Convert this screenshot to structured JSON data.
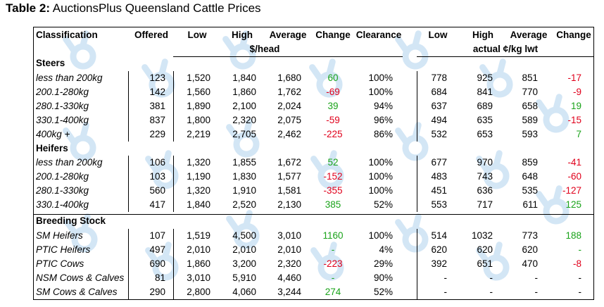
{
  "title": {
    "bold": "Table 2:",
    "text": " AuctionsPlus Queensland Cattle Prices"
  },
  "headers": {
    "classification": "Classification",
    "offered": "Offered",
    "low": "Low",
    "high": "High",
    "average": "Average",
    "change": "Change",
    "clearance": "Clearance",
    "low2": "Low",
    "high2": "High",
    "average2": "Average",
    "change2": "Change",
    "unit_head": "$/head",
    "unit_kg": "actual ¢/kg lwt"
  },
  "colors": {
    "positive": "#1aa31a",
    "negative": "#e0001b"
  },
  "rows": [
    {
      "section": "Steers"
    },
    {
      "label": "less than 200kg",
      "offered": "123",
      "low": "1,520",
      "high": "1,840",
      "avg": "1,680",
      "change": "60",
      "clearance": "100%",
      "low2": "778",
      "high2": "925",
      "avg2": "851",
      "change2": "-17"
    },
    {
      "label": "200.1-280kg",
      "offered": "142",
      "low": "1,560",
      "high": "1,860",
      "avg": "1,762",
      "change": "-69",
      "clearance": "100%",
      "low2": "684",
      "high2": "841",
      "avg2": "770",
      "change2": "-9"
    },
    {
      "label": "280.1-330kg",
      "offered": "381",
      "low": "1,890",
      "high": "2,100",
      "avg": "2,024",
      "change": "39",
      "clearance": "94%",
      "low2": "637",
      "high2": "689",
      "avg2": "658",
      "change2": "19"
    },
    {
      "label": "330.1-400kg",
      "offered": "837",
      "low": "1,800",
      "high": "2,320",
      "avg": "2,075",
      "change": "-59",
      "clearance": "96%",
      "low2": "494",
      "high2": "635",
      "avg2": "589",
      "change2": "-15"
    },
    {
      "label": "400kg +",
      "offered": "229",
      "low": "2,219",
      "high": "2,705",
      "avg": "2,462",
      "change": "-225",
      "clearance": "86%",
      "low2": "532",
      "high2": "653",
      "avg2": "593",
      "change2": "7"
    },
    {
      "section": "Heifers"
    },
    {
      "label": "less than 200kg",
      "offered": "106",
      "low": "1,320",
      "high": "1,855",
      "avg": "1,672",
      "change": "52",
      "clearance": "100%",
      "low2": "677",
      "high2": "970",
      "avg2": "859",
      "change2": "-41"
    },
    {
      "label": "200.1-280kg",
      "offered": "103",
      "low": "1,190",
      "high": "1,830",
      "avg": "1,577",
      "change": "-152",
      "clearance": "100%",
      "low2": "483",
      "high2": "743",
      "avg2": "648",
      "change2": "-60"
    },
    {
      "label": "280.1-330kg",
      "offered": "560",
      "low": "1,320",
      "high": "1,910",
      "avg": "1,581",
      "change": "-355",
      "clearance": "100%",
      "low2": "451",
      "high2": "636",
      "avg2": "535",
      "change2": "-127"
    },
    {
      "label": "330.1-400kg",
      "offered": "417",
      "low": "1,840",
      "high": "2,520",
      "avg": "2,130",
      "change": "385",
      "clearance": "52%",
      "low2": "553",
      "high2": "717",
      "avg2": "611",
      "change2": "125"
    },
    {
      "section": "Breeding Stock"
    },
    {
      "label": "SM Heifers",
      "offered": "107",
      "low": "1,519",
      "high": "4,500",
      "avg": "3,010",
      "change": "1160",
      "clearance": "100%",
      "low2": "514",
      "high2": "1032",
      "avg2": "773",
      "change2": "188"
    },
    {
      "label": "PTIC Heifers",
      "offered": "497",
      "low": "2,010",
      "high": "2,010",
      "avg": "2,010",
      "change": "-",
      "clearance": "4%",
      "low2": "620",
      "high2": "620",
      "avg2": "620",
      "change2": "-"
    },
    {
      "label": "PTIC Cows",
      "offered": "690",
      "low": "1,860",
      "high": "3,200",
      "avg": "2,320",
      "change": "-223",
      "clearance": "29%",
      "low2": "392",
      "high2": "651",
      "avg2": "470",
      "change2": "-8"
    },
    {
      "label": "NSM Cows & Calves",
      "offered": "81",
      "low": "3,010",
      "high": "5,910",
      "avg": "4,460",
      "change": "-",
      "clearance": "90%",
      "low2": "-",
      "high2": "-",
      "avg2": "-",
      "change2": "-"
    },
    {
      "label": "SM Cows & Calves",
      "offered": "290",
      "low": "2,800",
      "high": "4,060",
      "avg": "3,244",
      "change": "274",
      "clearance": "52%",
      "low2": "-",
      "high2": "-",
      "avg2": "-",
      "change2": "-"
    }
  ]
}
